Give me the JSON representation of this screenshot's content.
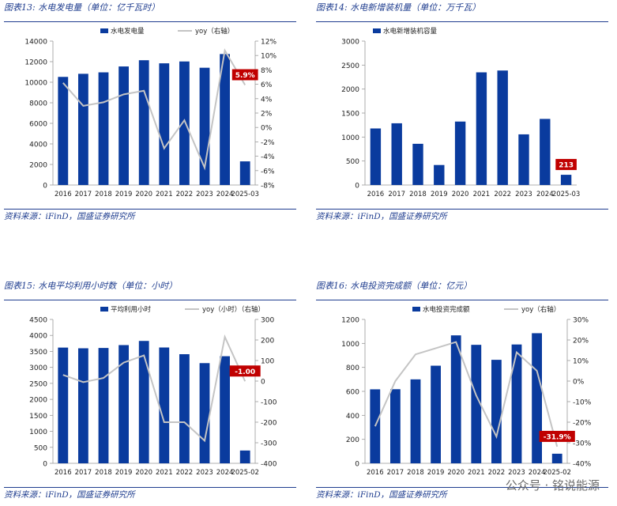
{
  "panels": [
    {
      "title": "图表13:  水电发电量（单位：亿千瓦时）",
      "source": "资料来源：iFinD，国盛证券研究所",
      "chart_data": {
        "type": "bar",
        "categories": [
          "2016",
          "2017",
          "2018",
          "2019",
          "2020",
          "2021",
          "2022",
          "2023",
          "2024",
          "2025-03"
        ],
        "series": [
          {
            "name": "水电发电量",
            "type": "bar",
            "axis": "left",
            "color": "#0a3b9e",
            "values": [
              10518,
              10819,
              10961,
              11534,
              12140,
              11840,
              12020,
              11409,
              12742,
              2300
            ]
          },
          {
            "name": "yoy（右轴）",
            "type": "line",
            "axis": "right",
            "color": "#c4c4c4",
            "values": [
              6.2,
              3.0,
              3.5,
              4.6,
              5.1,
              -2.9,
              1.0,
              -5.6,
              10.7,
              5.9
            ]
          }
        ],
        "ylim_left": [
          0,
          14000
        ],
        "ystep_left": 2000,
        "ylim_right": [
          -8,
          12
        ],
        "ystep_right": 2,
        "right_suffix": "%",
        "callout": {
          "text": "5.9%",
          "index": 9,
          "series": 1
        },
        "legend": "top"
      }
    },
    {
      "title": "图表14:  水电新增装机量（单位：万千瓦）",
      "source": "资料来源：iFinD，国盛证券研究所",
      "chart_data": {
        "type": "bar",
        "categories": [
          "2016",
          "2017",
          "2018",
          "2019",
          "2020",
          "2021",
          "2022",
          "2023",
          "2024",
          "2025-03"
        ],
        "series": [
          {
            "name": "水电新增装机容量",
            "type": "bar",
            "axis": "left",
            "color": "#0a3b9e",
            "values": [
              1179,
              1287,
              859,
              417,
              1323,
              2349,
              2387,
              1056,
              1378,
              213
            ]
          }
        ],
        "ylim_left": [
          0,
          3000
        ],
        "ystep_left": 500,
        "callout": {
          "text": "213",
          "index": 9,
          "series": 0
        },
        "legend": "top-left"
      }
    },
    {
      "title": "图表15:  水电平均利用小时数（单位：小时）",
      "source": "资料来源：iFinD，国盛证券研究所",
      "chart_data": {
        "type": "bar",
        "categories": [
          "2016",
          "2017",
          "2018",
          "2019",
          "2020",
          "2021",
          "2022",
          "2023",
          "2024",
          "2025-02"
        ],
        "series": [
          {
            "name": "平均利用小时",
            "type": "bar",
            "axis": "left",
            "color": "#0a3b9e",
            "values": [
              3619,
              3597,
              3607,
              3697,
              3827,
              3622,
              3412,
              3133,
              3349,
              400
            ]
          },
          {
            "name": "yoy（小时）（右轴）",
            "type": "line",
            "axis": "right",
            "color": "#c4c4c4",
            "values": [
              30,
              -5,
              15,
              90,
              125,
              -200,
              -200,
              -290,
              215,
              -1.0
            ]
          }
        ],
        "ylim_left": [
          0,
          4500
        ],
        "ystep_left": 500,
        "ylim_right": [
          -400,
          300
        ],
        "ystep_right": 100,
        "right_suffix": "",
        "callout": {
          "text": "-1.00",
          "index": 9,
          "series": 1
        },
        "legend": "top"
      }
    },
    {
      "title": "图表16:  水电投资完成额（单位：亿元）",
      "source": "资料来源：iFinD，国盛证券研究所",
      "chart_data": {
        "type": "bar",
        "categories": [
          "2016",
          "2017",
          "2018",
          "2019",
          "2020",
          "2021",
          "2022",
          "2023",
          "2024",
          "2025-02"
        ],
        "series": [
          {
            "name": "水电投资完成额",
            "type": "bar",
            "axis": "left",
            "color": "#0a3b9e",
            "values": [
              617,
              618,
              700,
              814,
              1067,
              988,
              863,
              991,
              1085,
              80
            ]
          },
          {
            "name": "yoy（右轴）",
            "type": "line",
            "axis": "right",
            "color": "#c4c4c4",
            "values": [
              -22,
              0,
              13,
              16,
              19,
              -7,
              -27,
              14,
              5,
              -31.9
            ]
          }
        ],
        "ylim_left": [
          0,
          1200
        ],
        "ystep_left": 200,
        "ylim_right": [
          -40,
          30
        ],
        "ystep_right": 10,
        "right_suffix": "%",
        "callout": {
          "text": "-31.9%",
          "index": 9,
          "series": 1
        },
        "legend": "top"
      }
    }
  ],
  "watermark": "公众号 · 铭说能源"
}
